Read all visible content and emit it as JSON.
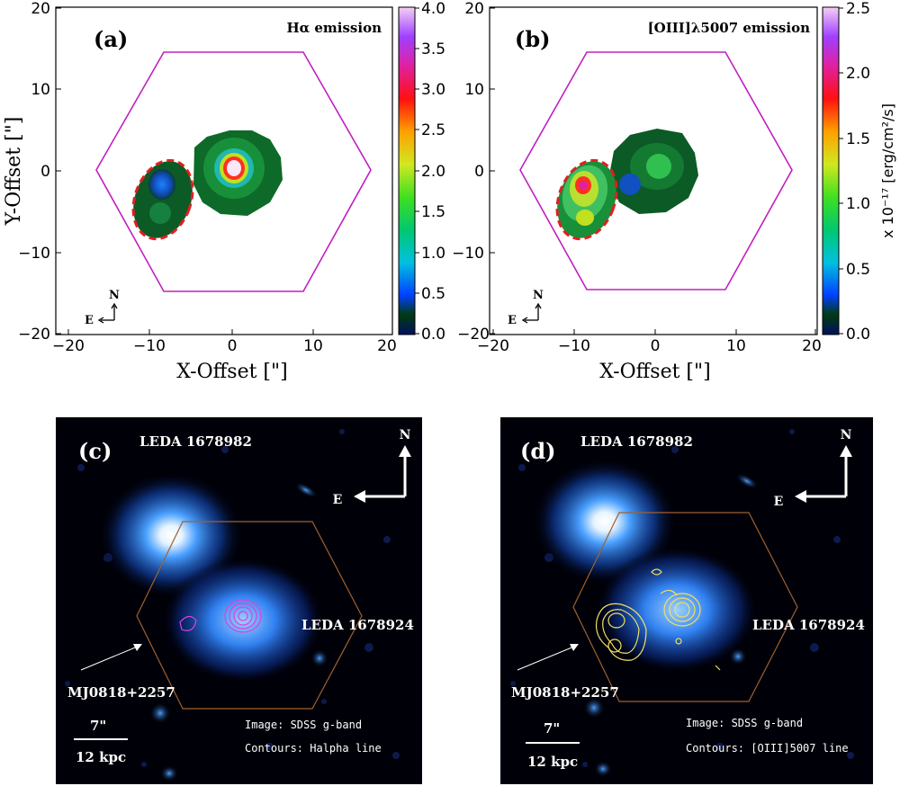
{
  "panel_a": {
    "label": "(a)",
    "title": "Hα emission",
    "xlabel": "X-Offset [\"]",
    "ylabel": "Y-Offset [\"]",
    "x_ticks": [
      "−20",
      "−10",
      "0",
      "10",
      "20"
    ],
    "y_ticks": [
      "20",
      "10",
      "0",
      "−10",
      "−20"
    ],
    "colorbar_ticks": [
      "4.0",
      "3.5",
      "3.0",
      "2.5",
      "2.0",
      "1.5",
      "1.0",
      "0.5",
      "0.0"
    ],
    "compass_n": "N",
    "compass_e": "E"
  },
  "panel_b": {
    "label": "(b)",
    "title": "[OIII]λ5007 emission",
    "xlabel": "X-Offset [\"]",
    "y_ticks": [
      "20",
      "10",
      "0",
      "−10",
      "−20"
    ],
    "x_ticks": [
      "−20",
      "−10",
      "0",
      "10",
      "20"
    ],
    "colorbar_ticks": [
      "2.5",
      "2.0",
      "1.5",
      "1.0",
      "0.5",
      "0.0"
    ],
    "colorbar_label": "x 10⁻¹⁷ [erg/cm²/s]",
    "compass_n": "N",
    "compass_e": "E"
  },
  "panel_c": {
    "label": "(c)",
    "galaxy_top": "LEDA 1678982",
    "galaxy_right": "LEDA 1678924",
    "target": "MJ0818+2257",
    "compass_n": "N",
    "compass_e": "E",
    "scale_arcsec": "7\"",
    "scale_kpc": "12 kpc",
    "caption_image": "Image: SDSS g-band",
    "caption_contours": "Contours: Halpha line",
    "contour_color": "#e040e0"
  },
  "panel_d": {
    "label": "(d)",
    "galaxy_top": "LEDA 1678982",
    "galaxy_right": "LEDA 1678924",
    "target": "MJ0818+2257",
    "compass_n": "N",
    "compass_e": "E",
    "scale_arcsec": "7\"",
    "scale_kpc": "12 kpc",
    "caption_image": "Image: SDSS g-band",
    "caption_contours": "Contours: [OIII]5007 line",
    "contour_color": "#f0e060"
  },
  "colors": {
    "hexagon": "#c020c0",
    "ellipse": "#e02020",
    "image_bg": "#000008",
    "hex_overlay": "#a06030"
  }
}
